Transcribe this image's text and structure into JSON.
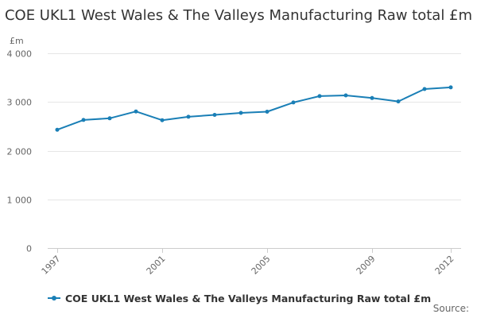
{
  "page": {
    "source_label": "Source:"
  },
  "colors": {
    "series": "#1a7fb6",
    "grid": "#e6e6e6",
    "axis_text": "#666666"
  },
  "chart_data": {
    "type": "line",
    "title": "COE UKL1 West Wales & The Valleys Manufacturing Raw total £m",
    "ylabel": "£m",
    "xlabel": "",
    "ylim": [
      0,
      4000
    ],
    "xlim": [
      1997,
      2012
    ],
    "y_ticks": [
      {
        "value": 0,
        "label": "0"
      },
      {
        "value": 1000,
        "label": "1 000"
      },
      {
        "value": 2000,
        "label": "2 000"
      },
      {
        "value": 3000,
        "label": "3 000"
      },
      {
        "value": 4000,
        "label": "4 000"
      }
    ],
    "x_ticks": [
      {
        "value": 1997,
        "label": "1997"
      },
      {
        "value": 2001,
        "label": "2001"
      },
      {
        "value": 2005,
        "label": "2005"
      },
      {
        "value": 2009,
        "label": "2009"
      },
      {
        "value": 2012,
        "label": "2012"
      }
    ],
    "grid": true,
    "legend": "bottom",
    "series": [
      {
        "name": "COE UKL1 West Wales & The Valleys Manufacturing Raw total £m",
        "x": [
          1997,
          1998,
          1999,
          2000,
          2001,
          2002,
          2003,
          2004,
          2005,
          2006,
          2007,
          2008,
          2009,
          2010,
          2011,
          2012
        ],
        "values": [
          2430,
          2630,
          2665,
          2805,
          2625,
          2695,
          2735,
          2775,
          2800,
          2990,
          3120,
          3135,
          3080,
          3010,
          3265,
          3300
        ]
      }
    ]
  }
}
